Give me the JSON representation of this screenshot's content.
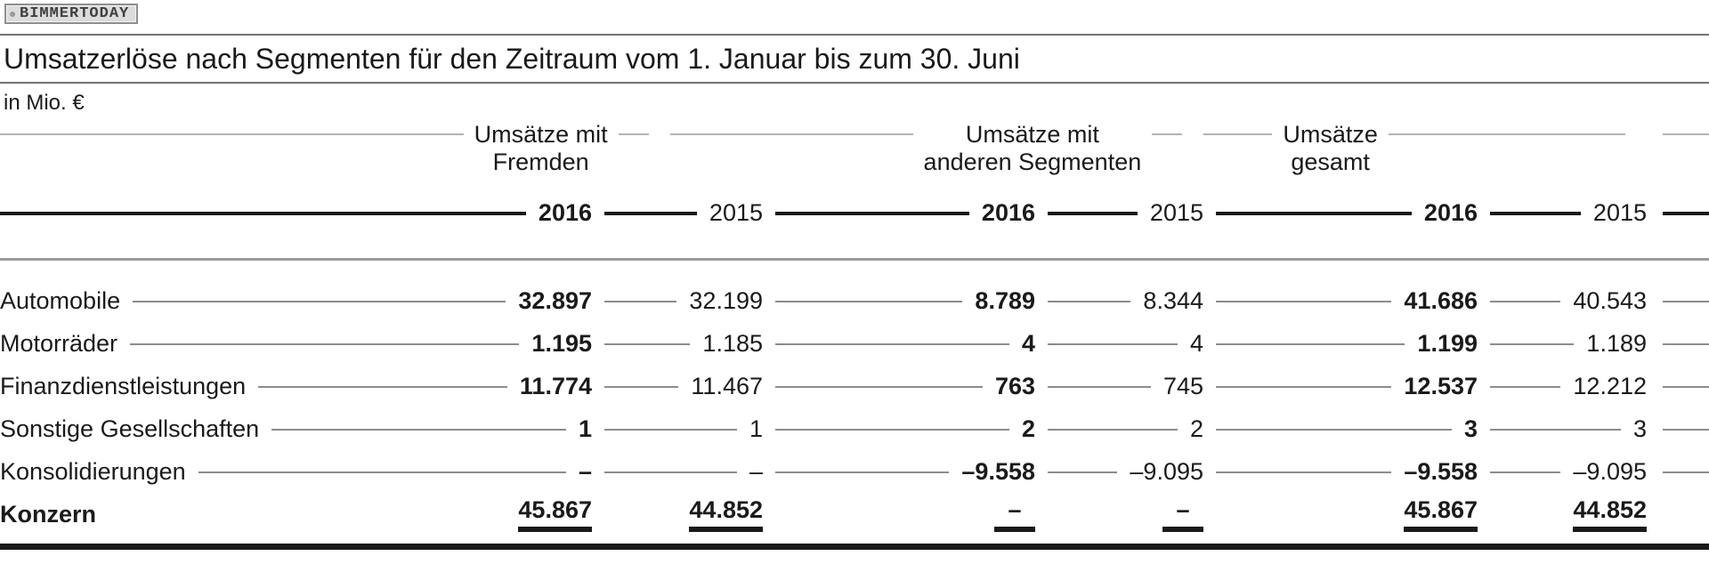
{
  "badge": {
    "label": "BIMMERTODAY"
  },
  "header": {
    "title": "Umsatzerlöse nach Segmenten für den Zeitraum vom 1. Januar bis zum 30. Juni",
    "unit": "in Mio. €"
  },
  "table": {
    "groups": [
      {
        "line1": "Umsätze mit",
        "line2": "Fremden"
      },
      {
        "line1": "Umsätze mit",
        "line2": "anderen Segmenten"
      },
      {
        "line1": "Umsätze",
        "line2": "gesamt"
      }
    ],
    "year_bold": "2016",
    "year_regular": "2015",
    "rows": [
      {
        "label": "Automobile",
        "values": [
          "32.897",
          "32.199",
          "8.789",
          "8.344",
          "41.686",
          "40.543"
        ]
      },
      {
        "label": "Motorräder",
        "values": [
          "1.195",
          "1.185",
          "4",
          "4",
          "1.199",
          "1.189"
        ]
      },
      {
        "label": "Finanzdienstleistungen",
        "values": [
          "11.774",
          "11.467",
          "763",
          "745",
          "12.537",
          "12.212"
        ]
      },
      {
        "label": "Sonstige Gesellschaften",
        "values": [
          "1",
          "1",
          "2",
          "2",
          "3",
          "3"
        ]
      },
      {
        "label": "Konsolidierungen",
        "values": [
          "–",
          "–",
          "–9.558",
          "–9.095",
          "–9.558",
          "–9.095"
        ]
      },
      {
        "label": "Konzern",
        "values": [
          "45.867",
          "44.852",
          "–",
          "–",
          "45.867",
          "44.852"
        ]
      }
    ]
  },
  "colors": {
    "text": "#1a1a1a",
    "leader": "#8c8c8c",
    "header_leader": "#b3b3b3",
    "rule": "#757575"
  },
  "chart_data": {
    "type": "table",
    "title": "Umsatzerlöse nach Segmenten für den Zeitraum vom 1. Januar bis zum 30. Juni",
    "unit": "in Mio. €",
    "column_groups": [
      "Umsätze mit Fremden",
      "Umsätze mit anderen Segmenten",
      "Umsätze gesamt"
    ],
    "columns": [
      {
        "group": "Umsätze mit Fremden",
        "year": 2016
      },
      {
        "group": "Umsätze mit Fremden",
        "year": 2015
      },
      {
        "group": "Umsätze mit anderen Segmenten",
        "year": 2016
      },
      {
        "group": "Umsätze mit anderen Segmenten",
        "year": 2015
      },
      {
        "group": "Umsätze gesamt",
        "year": 2016
      },
      {
        "group": "Umsätze gesamt",
        "year": 2015
      }
    ],
    "rows": [
      {
        "label": "Automobile",
        "values": [
          32897,
          32199,
          8789,
          8344,
          41686,
          40543
        ]
      },
      {
        "label": "Motorräder",
        "values": [
          1195,
          1185,
          4,
          4,
          1199,
          1189
        ]
      },
      {
        "label": "Finanzdienstleistungen",
        "values": [
          11774,
          11467,
          763,
          745,
          12537,
          12212
        ]
      },
      {
        "label": "Sonstige Gesellschaften",
        "values": [
          1,
          1,
          2,
          2,
          3,
          3
        ]
      },
      {
        "label": "Konsolidierungen",
        "values": [
          null,
          null,
          -9558,
          -9095,
          -9558,
          -9095
        ]
      },
      {
        "label": "Konzern",
        "values": [
          45867,
          44852,
          null,
          null,
          45867,
          44852
        ]
      }
    ]
  }
}
